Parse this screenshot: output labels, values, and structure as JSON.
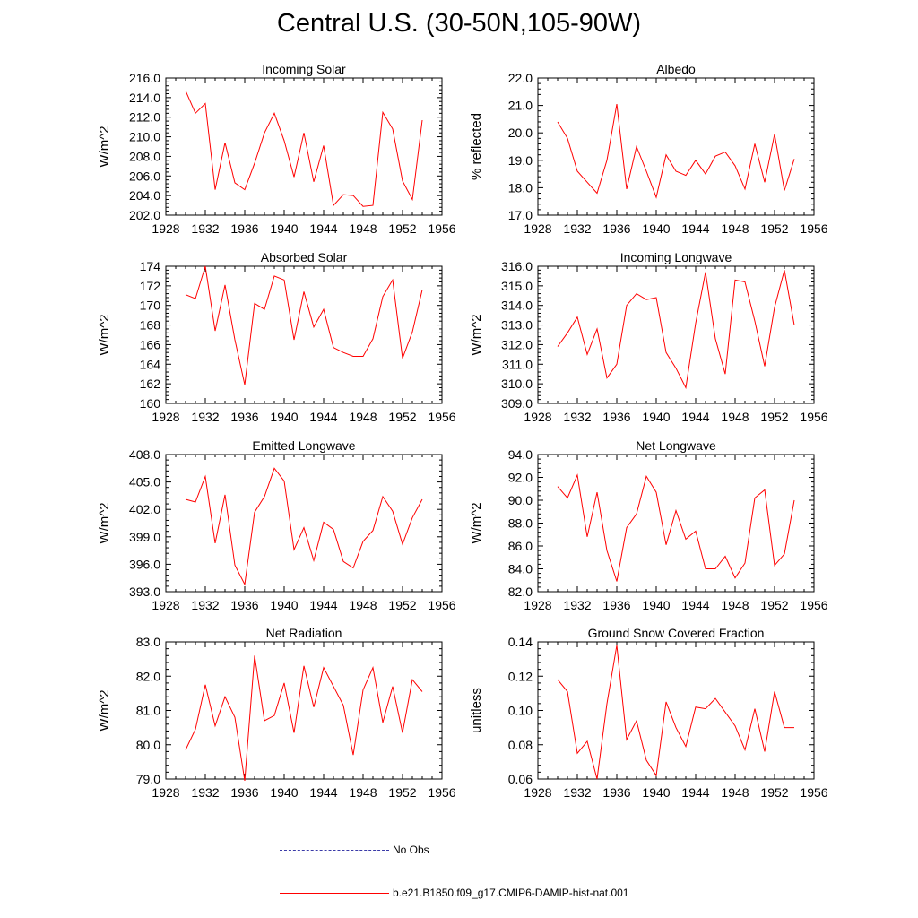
{
  "title": "Central U.S. (30-50N,105-90W)",
  "legend": [
    {
      "label": "No Obs",
      "color": "#3a3aa8",
      "style": "dashed"
    },
    {
      "label": "b.e21.B1850.f09_g17.CMIP6-DAMIP-hist-nat.001",
      "color": "#ff0000",
      "style": "solid"
    }
  ],
  "chart_data": [
    {
      "type": "line",
      "title": "Incoming Solar",
      "ylabel": "W/m^2",
      "xlim": [
        1928,
        1956
      ],
      "ylim": [
        202,
        216
      ],
      "xticks": [
        "1928",
        "1932",
        "1936",
        "1940",
        "1944",
        "1948",
        "1952",
        "1956"
      ],
      "yticks": [
        "202.0",
        "204.0",
        "206.0",
        "208.0",
        "210.0",
        "212.0",
        "214.0",
        "216.0"
      ],
      "series": [
        {
          "color": "#ff0000",
          "x": [
            1930,
            1931,
            1932,
            1933,
            1934,
            1935,
            1936,
            1937,
            1938,
            1939,
            1940,
            1941,
            1942,
            1943,
            1944,
            1945,
            1946,
            1947,
            1948,
            1949,
            1950,
            1951,
            1952,
            1953,
            1954
          ],
          "y": [
            214.7,
            212.4,
            213.4,
            204.6,
            209.4,
            205.3,
            204.6,
            207.3,
            210.4,
            212.4,
            209.6,
            205.9,
            210.4,
            205.4,
            209.1,
            203.0,
            204.1,
            204.0,
            202.9,
            203.0,
            212.5,
            210.8,
            205.5,
            203.6,
            211.7
          ]
        }
      ]
    },
    {
      "type": "line",
      "title": "Albedo",
      "ylabel": "% reflected",
      "xlim": [
        1928,
        1956
      ],
      "ylim": [
        17,
        22
      ],
      "xticks": [
        "1928",
        "1932",
        "1936",
        "1940",
        "1944",
        "1948",
        "1952",
        "1956"
      ],
      "yticks": [
        "17.0",
        "18.0",
        "19.0",
        "20.0",
        "21.0",
        "22.0"
      ],
      "series": [
        {
          "color": "#ff0000",
          "x": [
            1930,
            1931,
            1932,
            1933,
            1934,
            1935,
            1936,
            1937,
            1938,
            1939,
            1940,
            1941,
            1942,
            1943,
            1944,
            1945,
            1946,
            1947,
            1948,
            1949,
            1950,
            1951,
            1952,
            1953,
            1954
          ],
          "y": [
            20.4,
            19.8,
            18.6,
            18.2,
            17.8,
            19.0,
            21.05,
            17.95,
            19.5,
            18.6,
            17.65,
            19.2,
            18.6,
            18.45,
            19.0,
            18.5,
            19.15,
            19.3,
            18.8,
            17.95,
            19.6,
            18.2,
            19.95,
            17.9,
            19.05
          ]
        }
      ]
    },
    {
      "type": "line",
      "title": "Absorbed Solar",
      "ylabel": "W/m^2",
      "xlim": [
        1928,
        1956
      ],
      "ylim": [
        160,
        174
      ],
      "xticks": [
        "1928",
        "1932",
        "1936",
        "1940",
        "1944",
        "1948",
        "1952",
        "1956"
      ],
      "yticks": [
        "160",
        "162",
        "164",
        "166",
        "168",
        "170",
        "172",
        "174"
      ],
      "series": [
        {
          "color": "#ff0000",
          "x": [
            1930,
            1931,
            1932,
            1933,
            1934,
            1935,
            1936,
            1937,
            1938,
            1939,
            1940,
            1941,
            1942,
            1943,
            1944,
            1945,
            1946,
            1947,
            1948,
            1949,
            1950,
            1951,
            1952,
            1953,
            1954
          ],
          "y": [
            171.1,
            170.7,
            174.0,
            167.4,
            172.1,
            166.5,
            161.9,
            170.2,
            169.6,
            173.0,
            172.6,
            166.5,
            171.4,
            167.8,
            169.6,
            165.7,
            165.2,
            164.8,
            164.8,
            166.6,
            170.9,
            172.6,
            164.6,
            167.3,
            171.6
          ]
        }
      ]
    },
    {
      "type": "line",
      "title": "Incoming Longwave",
      "ylabel": "W/m^2",
      "xlim": [
        1928,
        1956
      ],
      "ylim": [
        309,
        316
      ],
      "xticks": [
        "1928",
        "1932",
        "1936",
        "1940",
        "1944",
        "1948",
        "1952",
        "1956"
      ],
      "yticks": [
        "309.0",
        "310.0",
        "311.0",
        "312.0",
        "313.0",
        "314.0",
        "315.0",
        "316.0"
      ],
      "series": [
        {
          "color": "#ff0000",
          "x": [
            1930,
            1931,
            1932,
            1933,
            1934,
            1935,
            1936,
            1937,
            1938,
            1939,
            1940,
            1941,
            1942,
            1943,
            1944,
            1945,
            1946,
            1947,
            1948,
            1949,
            1950,
            1951,
            1952,
            1953,
            1954
          ],
          "y": [
            311.9,
            312.6,
            313.4,
            311.5,
            312.8,
            310.3,
            311.0,
            314.0,
            314.6,
            314.3,
            314.4,
            311.6,
            310.8,
            309.8,
            313.1,
            315.7,
            312.3,
            310.5,
            315.3,
            315.2,
            313.2,
            310.9,
            313.9,
            315.8,
            313.0
          ]
        }
      ]
    },
    {
      "type": "line",
      "title": "Emitted Longwave",
      "ylabel": "W/m^2",
      "xlim": [
        1928,
        1956
      ],
      "ylim": [
        393,
        408
      ],
      "xticks": [
        "1928",
        "1932",
        "1936",
        "1940",
        "1944",
        "1948",
        "1952",
        "1956"
      ],
      "yticks": [
        "393.0",
        "396.0",
        "399.0",
        "402.0",
        "405.0",
        "408.0"
      ],
      "series": [
        {
          "color": "#ff0000",
          "x": [
            1930,
            1931,
            1932,
            1933,
            1934,
            1935,
            1936,
            1937,
            1938,
            1939,
            1940,
            1941,
            1942,
            1943,
            1944,
            1945,
            1946,
            1947,
            1948,
            1949,
            1950,
            1951,
            1952,
            1953,
            1954
          ],
          "y": [
            403.1,
            402.8,
            405.6,
            398.3,
            403.6,
            395.9,
            393.8,
            401.7,
            403.4,
            406.5,
            405.1,
            397.6,
            400.0,
            396.4,
            400.6,
            399.8,
            396.3,
            395.6,
            398.5,
            399.7,
            403.4,
            401.8,
            398.2,
            401.1,
            403.1
          ]
        }
      ]
    },
    {
      "type": "line",
      "title": "Net Longwave",
      "ylabel": "W/m^2",
      "xlim": [
        1928,
        1956
      ],
      "ylim": [
        82,
        94
      ],
      "xticks": [
        "1928",
        "1932",
        "1936",
        "1940",
        "1944",
        "1948",
        "1952",
        "1956"
      ],
      "yticks": [
        "82.0",
        "84.0",
        "86.0",
        "88.0",
        "90.0",
        "92.0",
        "94.0"
      ],
      "series": [
        {
          "color": "#ff0000",
          "x": [
            1930,
            1931,
            1932,
            1933,
            1934,
            1935,
            1936,
            1937,
            1938,
            1939,
            1940,
            1941,
            1942,
            1943,
            1944,
            1945,
            1946,
            1947,
            1948,
            1949,
            1950,
            1951,
            1952,
            1953,
            1954
          ],
          "y": [
            91.2,
            90.2,
            92.2,
            86.8,
            90.7,
            85.6,
            82.9,
            87.6,
            88.8,
            92.1,
            90.7,
            86.1,
            89.1,
            86.6,
            87.3,
            84.0,
            84.0,
            85.1,
            83.2,
            84.5,
            90.2,
            90.9,
            84.3,
            85.3,
            90.0
          ]
        }
      ]
    },
    {
      "type": "line",
      "title": "Net Radiation",
      "ylabel": "W/m^2",
      "xlim": [
        1928,
        1956
      ],
      "ylim": [
        79,
        83
      ],
      "xticks": [
        "1928",
        "1932",
        "1936",
        "1940",
        "1944",
        "1948",
        "1952",
        "1956"
      ],
      "yticks": [
        "79.0",
        "80.0",
        "81.0",
        "82.0",
        "83.0"
      ],
      "series": [
        {
          "color": "#ff0000",
          "x": [
            1930,
            1931,
            1932,
            1933,
            1934,
            1935,
            1936,
            1937,
            1938,
            1939,
            1940,
            1941,
            1942,
            1943,
            1944,
            1945,
            1946,
            1947,
            1948,
            1949,
            1950,
            1951,
            1952,
            1953,
            1954
          ],
          "y": [
            79.85,
            80.45,
            81.75,
            80.55,
            81.4,
            80.8,
            78.95,
            82.6,
            80.7,
            80.85,
            81.8,
            80.35,
            82.3,
            81.1,
            82.25,
            81.7,
            81.15,
            79.7,
            81.6,
            82.25,
            80.65,
            81.7,
            80.35,
            81.9,
            81.55
          ]
        }
      ]
    },
    {
      "type": "line",
      "title": "Ground Snow Covered Fraction",
      "ylabel": "unitless",
      "xlim": [
        1928,
        1956
      ],
      "ylim": [
        0.06,
        0.14
      ],
      "xticks": [
        "1928",
        "1932",
        "1936",
        "1940",
        "1944",
        "1948",
        "1952",
        "1956"
      ],
      "yticks": [
        "0.06",
        "0.08",
        "0.10",
        "0.12",
        "0.14"
      ],
      "series": [
        {
          "color": "#ff0000",
          "x": [
            1930,
            1931,
            1932,
            1933,
            1934,
            1935,
            1936,
            1937,
            1938,
            1939,
            1940,
            1941,
            1942,
            1943,
            1944,
            1945,
            1946,
            1947,
            1948,
            1949,
            1950,
            1951,
            1952,
            1953,
            1954
          ],
          "y": [
            0.118,
            0.111,
            0.075,
            0.082,
            0.06,
            0.104,
            0.138,
            0.083,
            0.094,
            0.071,
            0.062,
            0.105,
            0.09,
            0.079,
            0.102,
            0.101,
            0.107,
            0.099,
            0.091,
            0.077,
            0.101,
            0.076,
            0.111,
            0.09,
            0.09
          ]
        }
      ]
    }
  ]
}
